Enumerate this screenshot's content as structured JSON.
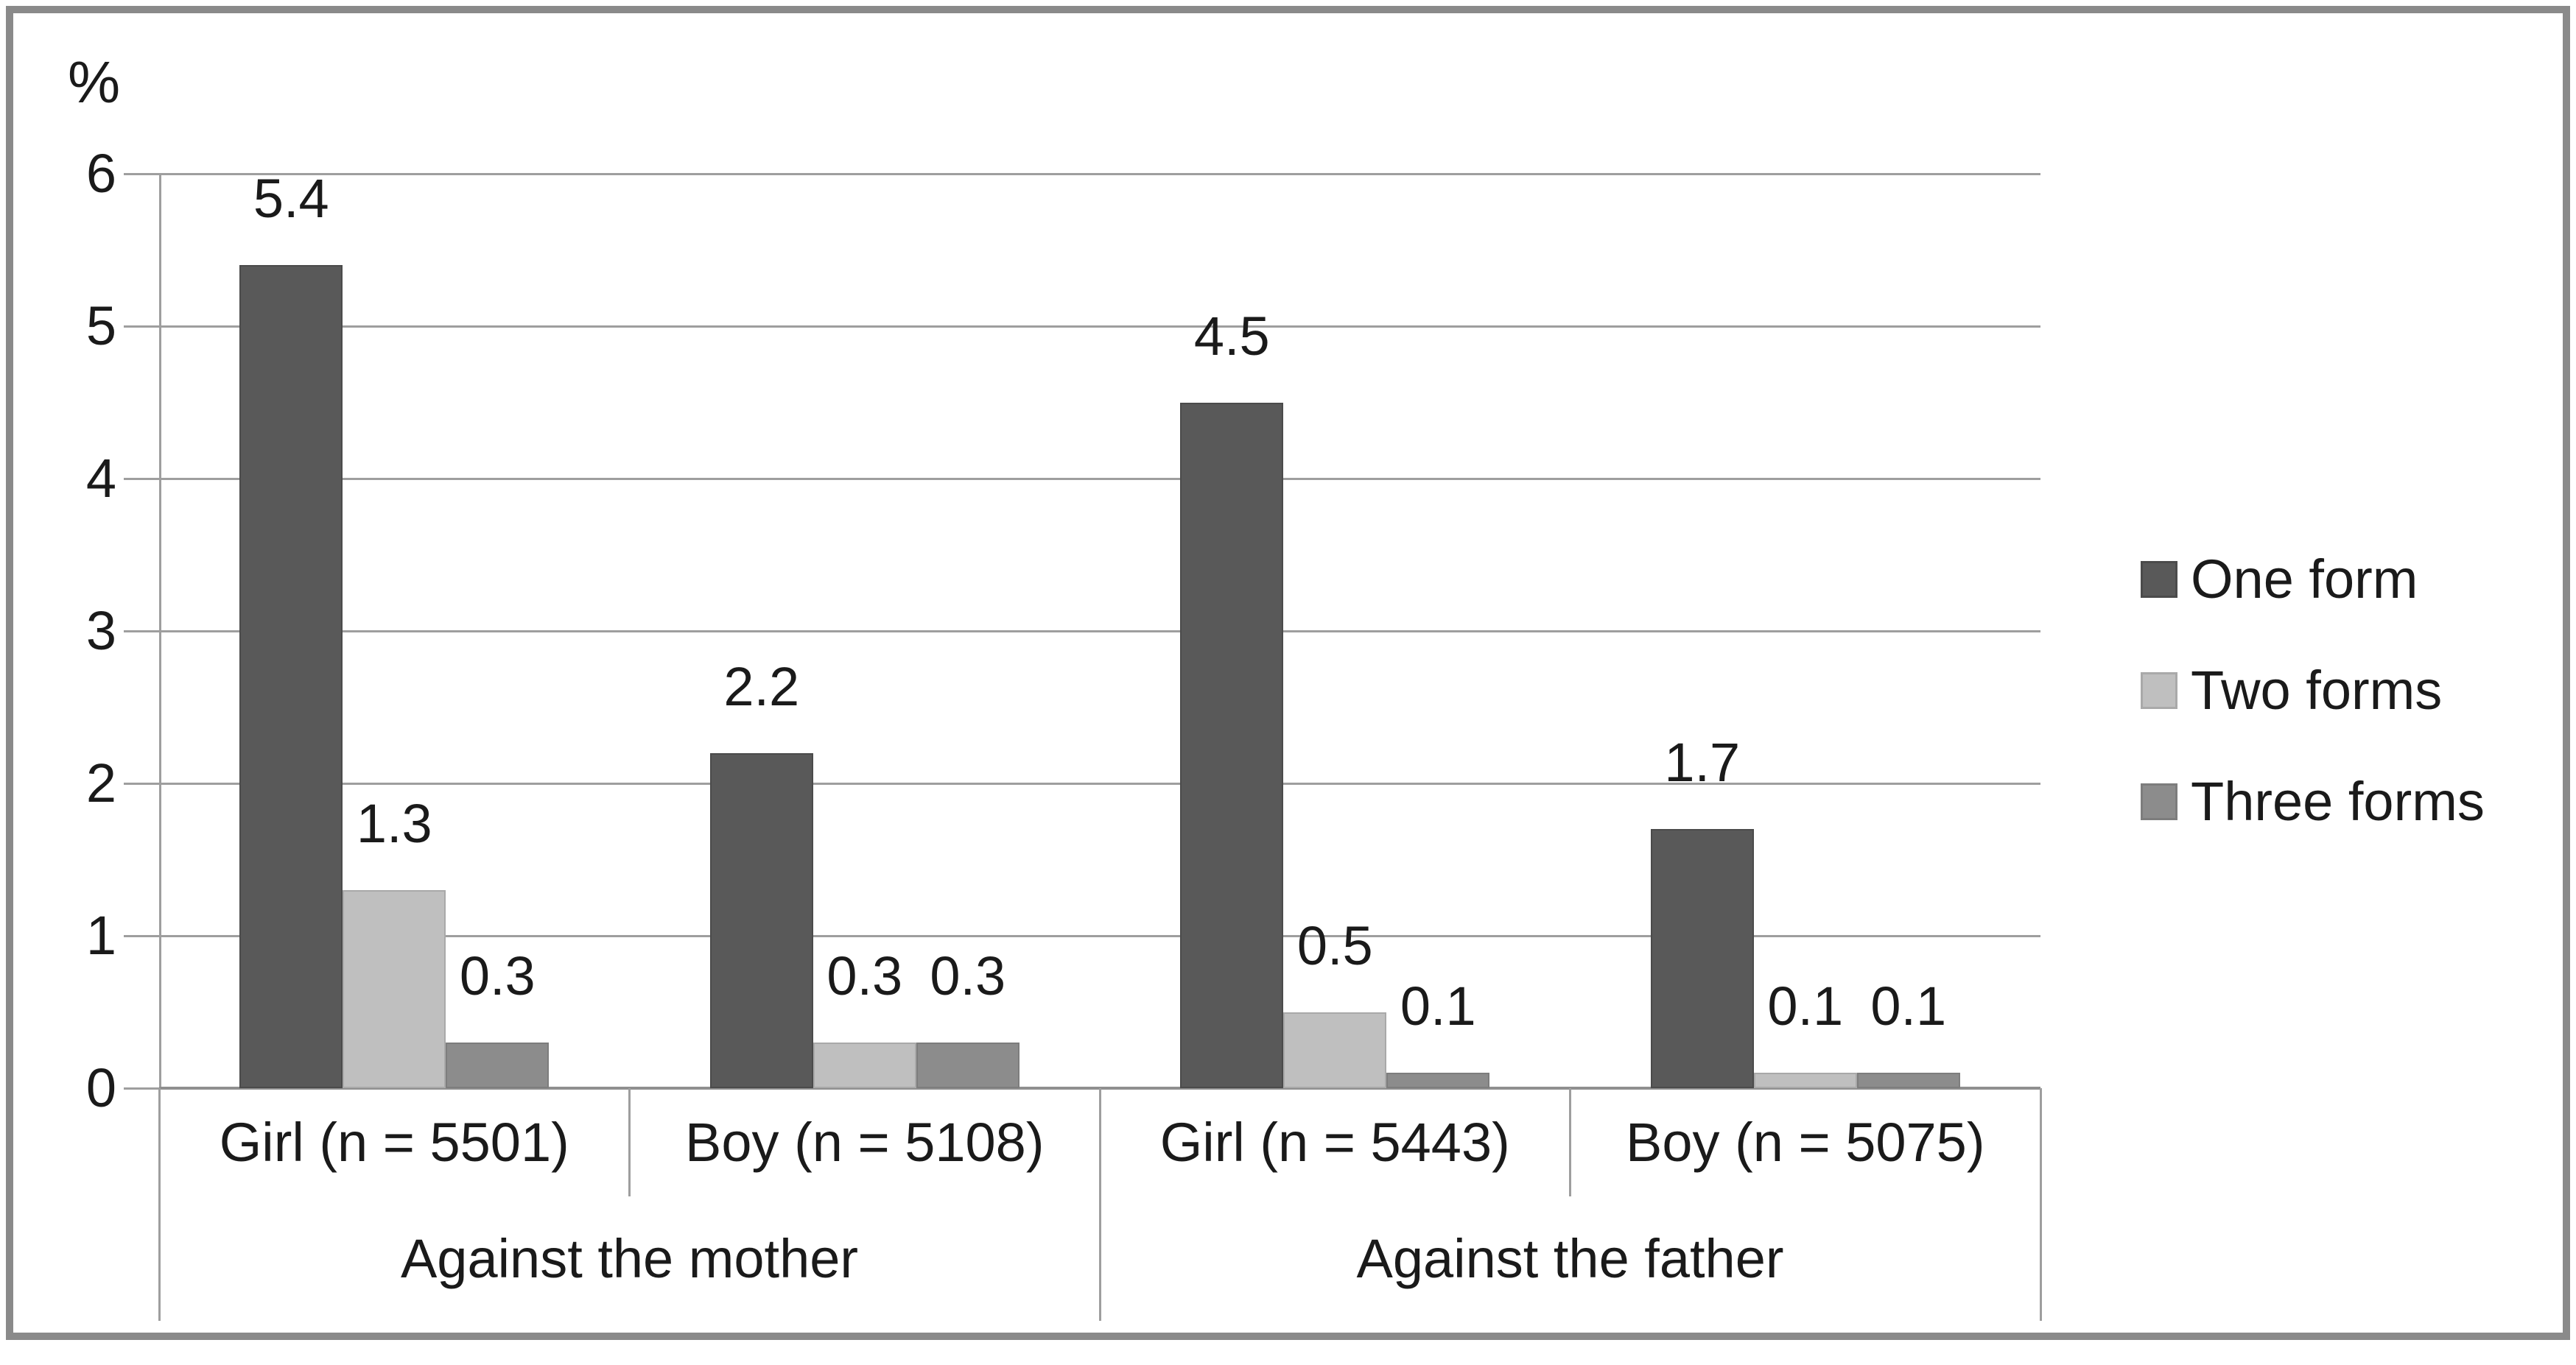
{
  "chart_data": {
    "type": "bar",
    "title": "",
    "ylabel": "%",
    "xlabel": "",
    "ylim": [
      0,
      6
    ],
    "yticks": [
      0,
      1,
      2,
      3,
      4,
      5,
      6
    ],
    "grid": "horizontal",
    "legend_position": "right",
    "categories": [
      "Girl (n = 5501)",
      "Boy (n = 5108)",
      "Girl (n = 5443)",
      "Boy (n = 5075)"
    ],
    "group_labels": [
      {
        "label": "Against the mother",
        "span": [
          0,
          1
        ]
      },
      {
        "label": "Against the father",
        "span": [
          2,
          3
        ]
      }
    ],
    "series": [
      {
        "name": "One form",
        "color": "#595959",
        "edge": "#4b4b4b",
        "values": [
          5.4,
          2.2,
          4.5,
          1.7
        ]
      },
      {
        "name": "Two forms",
        "color": "#bfbfbf",
        "edge": "#a9a9a9",
        "values": [
          1.3,
          0.3,
          0.5,
          0.1
        ]
      },
      {
        "name": "Three forms",
        "color": "#8c8c8c",
        "edge": "#7d7d7d",
        "values": [
          0.3,
          0.3,
          0.1,
          0.1
        ]
      }
    ],
    "data_labels": true,
    "colors": {
      "gridline": "#9e9e9e",
      "axis": "#8f8f8f",
      "frame": "#8a8a8a",
      "text": "#1a1a1a",
      "background": "#ffffff"
    }
  }
}
